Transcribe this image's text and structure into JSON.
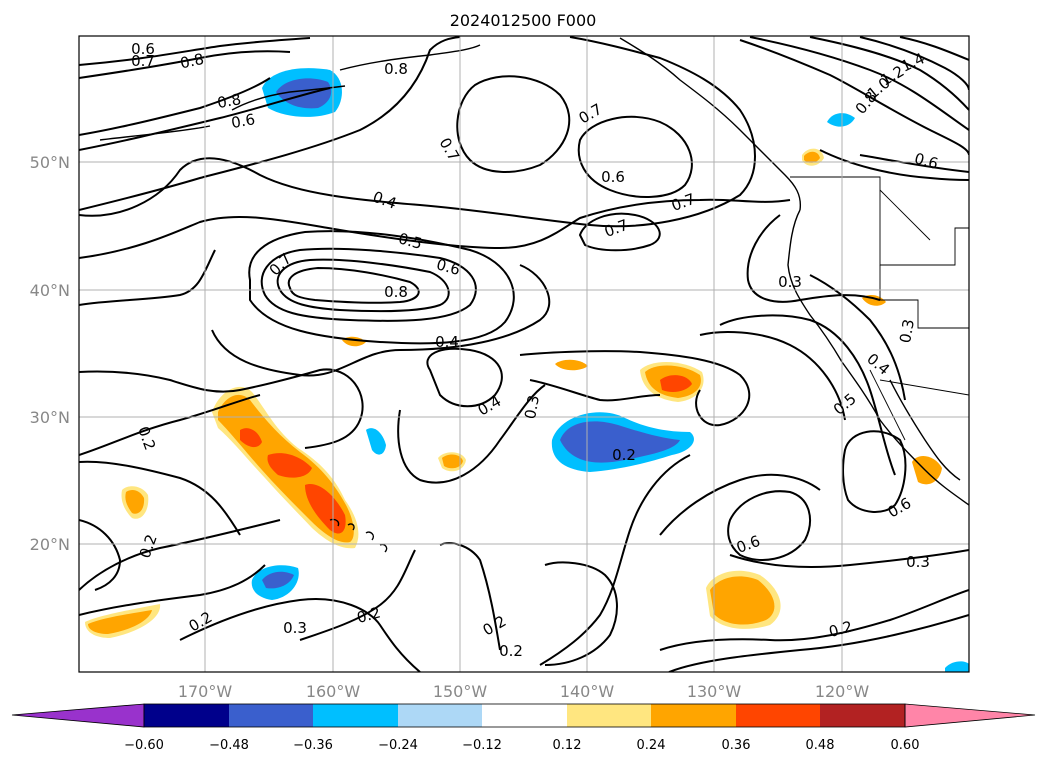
{
  "title": "2024012500 F000",
  "lat_labels": [
    "50°N",
    "40°N",
    "30°N",
    "20°N"
  ],
  "lon_labels": [
    "170°W",
    "160°W",
    "150°W",
    "140°W",
    "130°W",
    "120°W"
  ],
  "colorbar": {
    "ticks": [
      "−0.60",
      "−0.48",
      "−0.36",
      "−0.24",
      "−0.12",
      "0.12",
      "0.24",
      "0.36",
      "0.48",
      "0.60"
    ],
    "colors": [
      "#9932cc",
      "#00008b",
      "#3a5fcd",
      "#00bfff",
      "#add8f6",
      "#ffffff",
      "#ffe680",
      "#ffa500",
      "#ff4500",
      "#b22222",
      "#ff85a8"
    ]
  },
  "contour_labels": [
    "0.6",
    "0.7",
    "0.8",
    "0.8",
    "0.8",
    "0.6",
    "0.7",
    "0.7",
    "0.6",
    "0.7",
    "0.7",
    "1.4",
    "1.2",
    "1.0",
    "0.8",
    "0.6",
    "0.4",
    "0.5",
    "0.6",
    "0.7",
    "0.8",
    "0.4",
    "0.4",
    "0.3",
    "0.3",
    "0.3",
    "0.4",
    "0.5",
    "0.2",
    "0.2",
    "0.2",
    "0.2",
    "0.3",
    "0.2",
    "0.2",
    "0.2",
    "0.6",
    "0.6",
    "0.3",
    "0.2"
  ]
}
